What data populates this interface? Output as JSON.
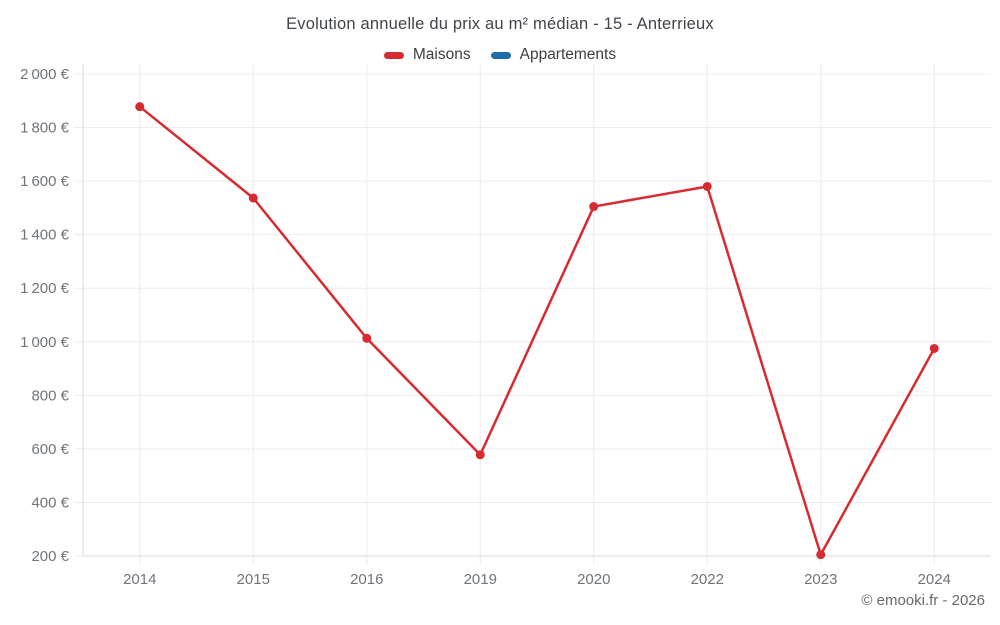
{
  "chart_data": {
    "type": "line",
    "title": "Evolution annuelle du prix au m² médian - 15 - Anterrieux",
    "categories": [
      "2014",
      "2015",
      "2016",
      "2019",
      "2020",
      "2022",
      "2023",
      "2024"
    ],
    "series": [
      {
        "name": "Maisons",
        "color": "#d62b30",
        "values": [
          1878,
          1537,
          1013,
          578,
          1505,
          1580,
          205,
          975
        ]
      },
      {
        "name": "Appartements",
        "color": "#1b6ca8",
        "values": []
      }
    ],
    "xlabel": "",
    "ylabel": "",
    "ylim": [
      200,
      2000
    ],
    "ytick_step": 200,
    "ytick_suffix": "€",
    "grid": true,
    "grid_color": "#ececec",
    "axis_line_color": "#d9d9d9",
    "axis_label_color": "#70757a",
    "legend_position": "top",
    "marker_radius": 4.5,
    "line_width": 2.5
  },
  "footer": {
    "text": "© emooki.fr - 2026"
  }
}
